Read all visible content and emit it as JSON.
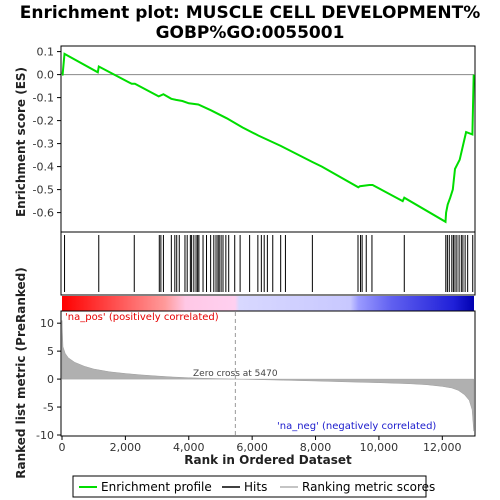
{
  "chart_data": {
    "type": "line",
    "title_line1": "Enrichment plot: MUSCLE CELL DEVELOPMENT%",
    "title_line2": "GOBP%GO:0055001",
    "es_panel": {
      "ylabel": "Enrichment score (ES)",
      "ylim": [
        -0.68,
        0.12
      ],
      "yticks": [
        "0.1",
        "0.0",
        "-0.1",
        "-0.2",
        "-0.3",
        "-0.4",
        "-0.5",
        "-0.6"
      ],
      "ytick_values": [
        0.1,
        0.0,
        -0.1,
        -0.2,
        -0.3,
        -0.4,
        -0.5,
        -0.6
      ],
      "series": [
        {
          "name": "Enrichment profile",
          "color": "#00dd00",
          "x": [
            0,
            20,
            80,
            1130,
            1160,
            2200,
            2300,
            3050,
            3200,
            3450,
            3600,
            3800,
            4000,
            4300,
            4700,
            5200,
            5700,
            6200,
            6900,
            7900,
            8200,
            9350,
            9400,
            9700,
            9800,
            10750,
            10800,
            12100,
            12120,
            12170,
            12250,
            12330,
            12400,
            12550,
            12650,
            12750,
            12950,
            12970,
            12990
          ],
          "y": [
            0.0,
            0.0,
            0.09,
            0.01,
            0.035,
            -0.04,
            -0.04,
            -0.095,
            -0.085,
            -0.105,
            -0.11,
            -0.115,
            -0.125,
            -0.13,
            -0.155,
            -0.19,
            -0.23,
            -0.265,
            -0.31,
            -0.38,
            -0.4,
            -0.49,
            -0.485,
            -0.48,
            -0.48,
            -0.55,
            -0.535,
            -0.64,
            -0.6,
            -0.565,
            -0.535,
            -0.5,
            -0.41,
            -0.37,
            -0.31,
            -0.25,
            -0.26,
            -0.14,
            0.0
          ]
        }
      ]
    },
    "hits": [
      80,
      1160,
      2280,
      3070,
      3120,
      3200,
      3450,
      3560,
      3620,
      3700,
      3880,
      3950,
      4050,
      4090,
      4160,
      4230,
      4280,
      4320,
      4450,
      4560,
      4690,
      4790,
      4860,
      4920,
      4960,
      5020,
      5080,
      5170,
      5260,
      5450,
      5620,
      5920,
      6180,
      6290,
      6380,
      6480,
      6650,
      6900,
      7050,
      7900,
      9340,
      9420,
      9470,
      9600,
      9780,
      10800,
      12110,
      12160,
      12220,
      12300,
      12350,
      12400,
      12460,
      12530,
      12600,
      12650,
      12720,
      12800,
      12960
    ],
    "metric_panel": {
      "ylabel": "Ranked list metric (PreRanked)",
      "ylim": [
        -10,
        12
      ],
      "yticks": [
        "10",
        "5",
        "0",
        "-5",
        "-10"
      ],
      "ytick_values": [
        10,
        5,
        0,
        -5,
        -10
      ],
      "profile_x": [
        0,
        30,
        100,
        200,
        400,
        700,
        1000,
        1500,
        2000,
        2500,
        3000,
        3500,
        4000,
        4500,
        5000,
        5470,
        6000,
        7000,
        8000,
        9000,
        10000,
        11000,
        11500,
        12000,
        12300,
        12500,
        12700,
        12850,
        12940,
        12990
      ],
      "profile_y": [
        10.5,
        5.8,
        4.6,
        3.8,
        3.0,
        2.3,
        1.8,
        1.3,
        1.0,
        0.75,
        0.55,
        0.38,
        0.25,
        0.15,
        0.07,
        0.0,
        -0.08,
        -0.2,
        -0.35,
        -0.5,
        -0.65,
        -0.85,
        -1.0,
        -1.3,
        -1.6,
        -2.0,
        -2.8,
        -3.8,
        -5.5,
        -9.3
      ],
      "color": "#b0b0b0"
    },
    "xlabel": "Rank in Ordered Dataset",
    "xlim": [
      0,
      13000
    ],
    "xticks": [
      "0",
      "2,000",
      "4,000",
      "6,000",
      "8,000",
      "10,000",
      "12,000"
    ],
    "xtick_values": [
      0,
      2000,
      4000,
      6000,
      8000,
      10000,
      12000
    ],
    "zero_cross": 5470,
    "zero_cross_label": "Zero cross at 5470",
    "pos_label": "'na_pos' (positively correlated)",
    "neg_label": "'na_neg' (negatively correlated)",
    "legend": [
      {
        "name": "Enrichment profile",
        "color": "#00dd00"
      },
      {
        "name": "Hits",
        "color": "#000000"
      },
      {
        "name": "Ranking metric scores",
        "color": "#b0b0b0"
      }
    ]
  }
}
